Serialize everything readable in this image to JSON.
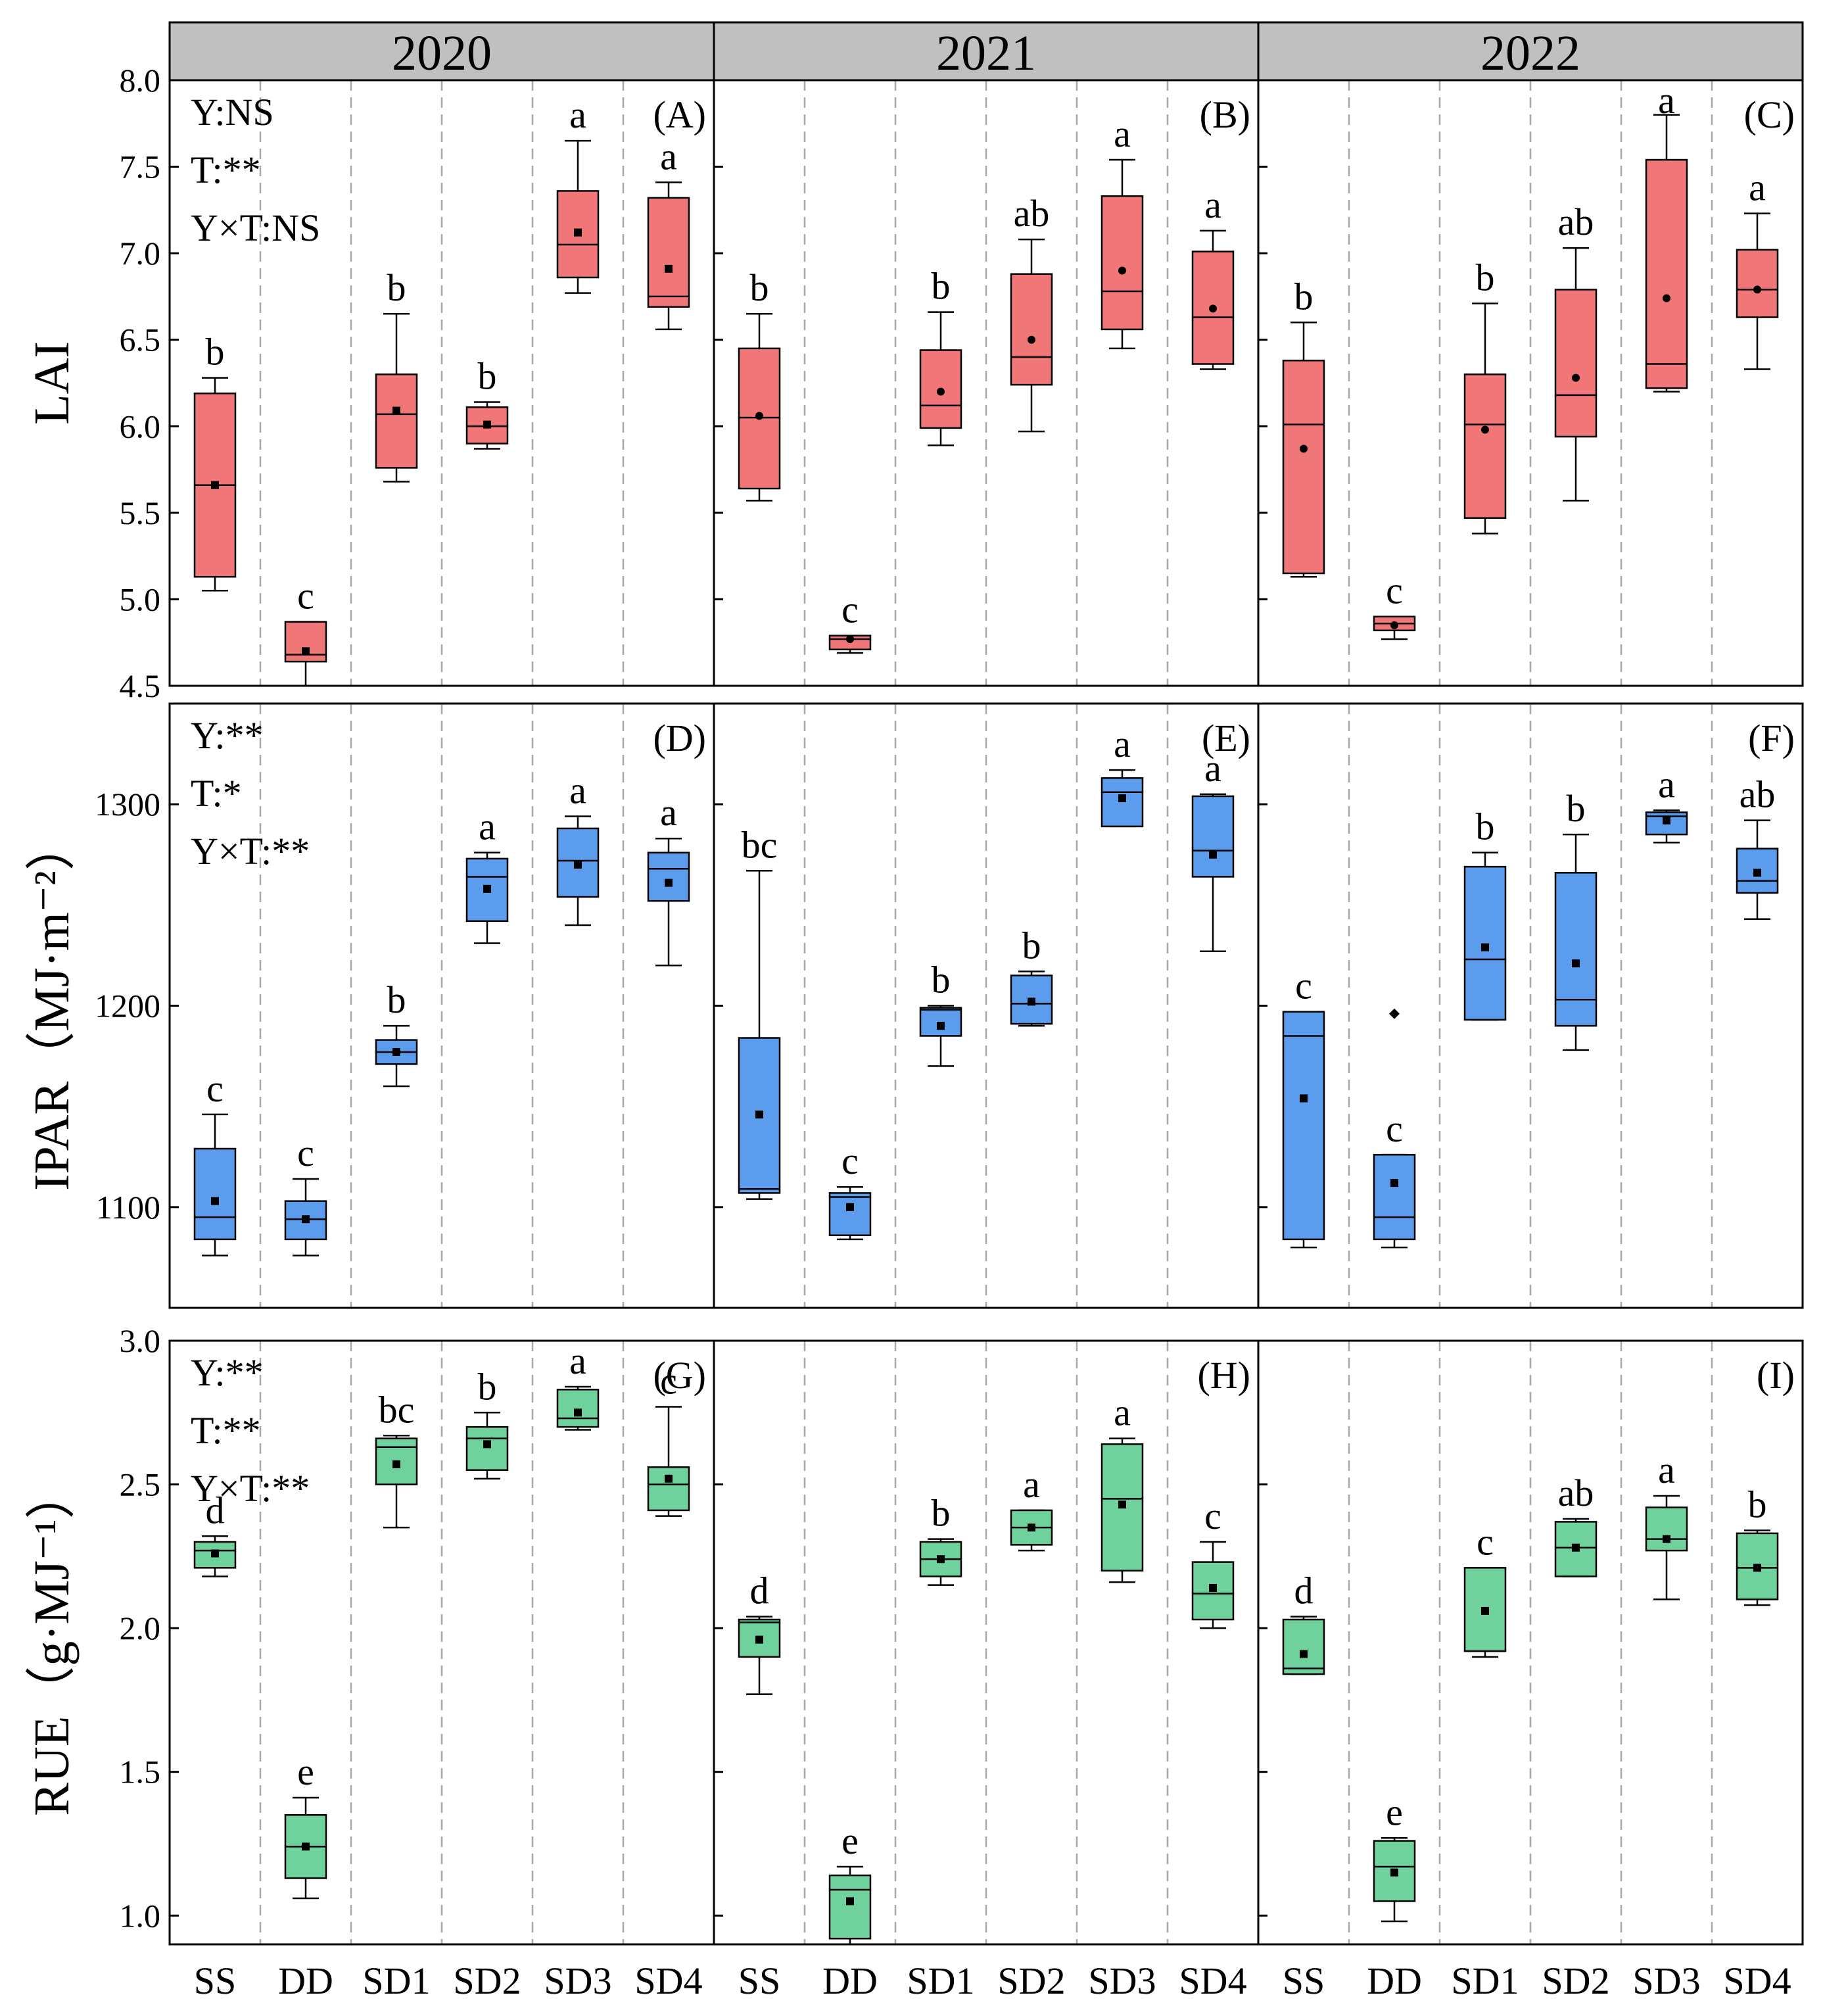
{
  "colors": {
    "strip_fill": "#c0c0c0",
    "lai_box": "#f07677",
    "ipar_box": "#5c9cec",
    "rue_box": "#6fd19c",
    "frame": "#000000",
    "divider": "#a8a8a8"
  },
  "categories": [
    "SS",
    "DD",
    "SD1",
    "SD2",
    "SD3",
    "SD4"
  ],
  "chart_data": [
    {
      "type": "boxplot",
      "id": "lai",
      "ylabel": "LAI",
      "ylim": [
        4.5,
        8.0
      ],
      "yticks": [
        "4.5",
        "5.0",
        "5.5",
        "6.0",
        "6.5",
        "7.0",
        "7.5",
        "8.0"
      ],
      "color_key": "lai_box",
      "mean_marker": [
        "square",
        "circle",
        "circle"
      ],
      "stats": [
        "Y:NS",
        "T:**",
        "Y×T:NS"
      ],
      "panels": [
        {
          "year": "2020",
          "tag": "(A)",
          "boxes": [
            {
              "cat": "SS",
              "min": 5.05,
              "q1": 5.13,
              "median": 5.66,
              "q3": 6.19,
              "max": 6.28,
              "mean": 5.66,
              "letter": "b"
            },
            {
              "cat": "DD",
              "min": 4.5,
              "q1": 4.64,
              "median": 4.68,
              "q3": 4.87,
              "max": 4.87,
              "mean": 4.7,
              "letter": "c"
            },
            {
              "cat": "SD1",
              "min": 5.68,
              "q1": 5.76,
              "median": 6.07,
              "q3": 6.3,
              "max": 6.65,
              "mean": 6.09,
              "letter": "b"
            },
            {
              "cat": "SD2",
              "min": 5.87,
              "q1": 5.9,
              "median": 6.0,
              "q3": 6.11,
              "max": 6.14,
              "mean": 6.01,
              "letter": "b"
            },
            {
              "cat": "SD3",
              "min": 6.77,
              "q1": 6.86,
              "median": 7.05,
              "q3": 7.36,
              "max": 7.65,
              "mean": 7.12,
              "letter": "a"
            },
            {
              "cat": "SD4",
              "min": 6.56,
              "q1": 6.69,
              "median": 6.75,
              "q3": 7.32,
              "max": 7.41,
              "mean": 6.91,
              "letter": "a"
            }
          ]
        },
        {
          "year": "2021",
          "tag": "(B)",
          "boxes": [
            {
              "cat": "SS",
              "min": 5.57,
              "q1": 5.64,
              "median": 6.05,
              "q3": 6.45,
              "max": 6.65,
              "mean": 6.06,
              "letter": "b"
            },
            {
              "cat": "DD",
              "min": 4.69,
              "q1": 4.71,
              "median": 4.77,
              "q3": 4.79,
              "max": 4.79,
              "mean": 4.77,
              "letter": "c"
            },
            {
              "cat": "SD1",
              "min": 5.89,
              "q1": 5.99,
              "median": 6.12,
              "q3": 6.44,
              "max": 6.66,
              "mean": 6.2,
              "letter": "b"
            },
            {
              "cat": "SD2",
              "min": 5.97,
              "q1": 6.24,
              "median": 6.4,
              "q3": 6.88,
              "max": 7.08,
              "mean": 6.5,
              "letter": "ab"
            },
            {
              "cat": "SD3",
              "min": 6.45,
              "q1": 6.56,
              "median": 6.78,
              "q3": 7.33,
              "max": 7.54,
              "mean": 6.9,
              "letter": "a"
            },
            {
              "cat": "SD4",
              "min": 6.33,
              "q1": 6.36,
              "median": 6.63,
              "q3": 7.01,
              "max": 7.13,
              "mean": 6.68,
              "letter": "a"
            }
          ]
        },
        {
          "year": "2022",
          "tag": "(C)",
          "boxes": [
            {
              "cat": "SS",
              "min": 5.13,
              "q1": 5.15,
              "median": 6.01,
              "q3": 6.38,
              "max": 6.6,
              "mean": 5.87,
              "letter": "b"
            },
            {
              "cat": "DD",
              "min": 4.77,
              "q1": 4.82,
              "median": 4.86,
              "q3": 4.9,
              "max": 4.9,
              "mean": 4.85,
              "letter": "c"
            },
            {
              "cat": "SD1",
              "min": 5.38,
              "q1": 5.47,
              "median": 6.01,
              "q3": 6.3,
              "max": 6.71,
              "mean": 5.98,
              "letter": "b"
            },
            {
              "cat": "SD2",
              "min": 5.57,
              "q1": 5.94,
              "median": 6.18,
              "q3": 6.79,
              "max": 7.03,
              "mean": 6.28,
              "letter": "ab"
            },
            {
              "cat": "SD3",
              "min": 6.2,
              "q1": 6.22,
              "median": 6.36,
              "q3": 7.54,
              "max": 7.8,
              "mean": 6.74,
              "letter": "a"
            },
            {
              "cat": "SD4",
              "min": 6.33,
              "q1": 6.63,
              "median": 6.79,
              "q3": 7.02,
              "max": 7.23,
              "mean": 6.79,
              "letter": "a"
            }
          ]
        }
      ]
    },
    {
      "type": "boxplot",
      "id": "ipar",
      "ylabel": "IPAR（MJ·m⁻²）",
      "ylim": [
        1050,
        1350
      ],
      "yticks": [
        "1100",
        "1200",
        "1300"
      ],
      "color_key": "ipar_box",
      "mean_marker": [
        "square",
        "square",
        "square"
      ],
      "stats": [
        "Y:**",
        "T:*",
        "Y×T:**"
      ],
      "panels": [
        {
          "year": "2020",
          "tag": "(D)",
          "boxes": [
            {
              "cat": "SS",
              "min": 1076,
              "q1": 1084,
              "median": 1095,
              "q3": 1129,
              "max": 1146,
              "mean": 1103,
              "letter": "c"
            },
            {
              "cat": "DD",
              "min": 1076,
              "q1": 1084,
              "median": 1094,
              "q3": 1103,
              "max": 1114,
              "mean": 1094,
              "letter": "c"
            },
            {
              "cat": "SD1",
              "min": 1160,
              "q1": 1171,
              "median": 1177,
              "q3": 1183,
              "max": 1190,
              "mean": 1177,
              "letter": "b"
            },
            {
              "cat": "SD2",
              "min": 1231,
              "q1": 1242,
              "median": 1264,
              "q3": 1273,
              "max": 1276,
              "mean": 1258,
              "letter": "a"
            },
            {
              "cat": "SD3",
              "min": 1240,
              "q1": 1254,
              "median": 1272,
              "q3": 1288,
              "max": 1294,
              "mean": 1270,
              "letter": "a"
            },
            {
              "cat": "SD4",
              "min": 1220,
              "q1": 1252,
              "median": 1268,
              "q3": 1276,
              "max": 1283,
              "mean": 1261,
              "letter": "a"
            }
          ]
        },
        {
          "year": "2021",
          "tag": "(E)",
          "boxes": [
            {
              "cat": "SS",
              "min": 1104,
              "q1": 1107,
              "median": 1109,
              "q3": 1184,
              "max": 1267,
              "mean": 1146,
              "letter": "bc"
            },
            {
              "cat": "DD",
              "min": 1084,
              "q1": 1086,
              "median": 1105,
              "q3": 1107,
              "max": 1110,
              "mean": 1100,
              "letter": "c"
            },
            {
              "cat": "SD1",
              "min": 1170,
              "q1": 1185,
              "median": 1198,
              "q3": 1199,
              "max": 1200,
              "mean": 1190,
              "letter": "b"
            },
            {
              "cat": "SD2",
              "min": 1190,
              "q1": 1191,
              "median": 1201,
              "q3": 1215,
              "max": 1217,
              "mean": 1202,
              "letter": "b"
            },
            {
              "cat": "SD3",
              "min": 1289,
              "q1": 1289,
              "median": 1306,
              "q3": 1313,
              "max": 1317,
              "mean": 1303,
              "letter": "a"
            },
            {
              "cat": "SD4",
              "min": 1227,
              "q1": 1264,
              "median": 1277,
              "q3": 1304,
              "max": 1305,
              "mean": 1275,
              "letter": "a"
            }
          ]
        },
        {
          "year": "2022",
          "tag": "(F)",
          "boxes": [
            {
              "cat": "SS",
              "min": 1080,
              "q1": 1084,
              "median": 1185,
              "q3": 1197,
              "max": 1197,
              "mean": 1154,
              "letter": "c"
            },
            {
              "cat": "DD",
              "min": 1080,
              "q1": 1084,
              "median": 1095,
              "q3": 1126,
              "max": 1126,
              "mean": 1112,
              "letter": "c",
              "outlier": 1196
            },
            {
              "cat": "SD1",
              "min": 1193,
              "q1": 1193,
              "median": 1223,
              "q3": 1269,
              "max": 1276,
              "mean": 1229,
              "letter": "b"
            },
            {
              "cat": "SD2",
              "min": 1178,
              "q1": 1190,
              "median": 1203,
              "q3": 1266,
              "max": 1285,
              "mean": 1221,
              "letter": "b"
            },
            {
              "cat": "SD3",
              "min": 1281,
              "q1": 1285,
              "median": 1294,
              "q3": 1296,
              "max": 1297,
              "mean": 1292,
              "letter": "a"
            },
            {
              "cat": "SD4",
              "min": 1243,
              "q1": 1256,
              "median": 1262,
              "q3": 1278,
              "max": 1292,
              "mean": 1266,
              "letter": "ab"
            }
          ]
        }
      ]
    },
    {
      "type": "boxplot",
      "id": "rue",
      "ylabel": "RUE（g·MJ⁻¹）",
      "ylim": [
        0.9,
        3.0
      ],
      "yticks": [
        "1.0",
        "1.5",
        "2.0",
        "2.5",
        "3.0"
      ],
      "color_key": "rue_box",
      "mean_marker": [
        "square",
        "square",
        "square"
      ],
      "stats": [
        "Y:**",
        "T:**",
        "Y×T:**"
      ],
      "panels": [
        {
          "year": "2020",
          "tag": "(G)",
          "boxes": [
            {
              "cat": "SS",
              "min": 2.18,
              "q1": 2.21,
              "median": 2.27,
              "q3": 2.3,
              "max": 2.32,
              "mean": 2.26,
              "letter": "d"
            },
            {
              "cat": "DD",
              "min": 1.06,
              "q1": 1.13,
              "median": 1.24,
              "q3": 1.35,
              "max": 1.41,
              "mean": 1.24,
              "letter": "e"
            },
            {
              "cat": "SD1",
              "min": 2.35,
              "q1": 2.5,
              "median": 2.63,
              "q3": 2.66,
              "max": 2.67,
              "mean": 2.57,
              "letter": "bc"
            },
            {
              "cat": "SD2",
              "min": 2.52,
              "q1": 2.55,
              "median": 2.66,
              "q3": 2.7,
              "max": 2.75,
              "mean": 2.64,
              "letter": "b"
            },
            {
              "cat": "SD3",
              "min": 2.69,
              "q1": 2.7,
              "median": 2.73,
              "q3": 2.83,
              "max": 2.84,
              "mean": 2.75,
              "letter": "a"
            },
            {
              "cat": "SD4",
              "min": 2.39,
              "q1": 2.41,
              "median": 2.5,
              "q3": 2.56,
              "max": 2.77,
              "mean": 2.52,
              "letter": "c"
            }
          ]
        },
        {
          "year": "2021",
          "tag": "(H)",
          "boxes": [
            {
              "cat": "SS",
              "min": 1.77,
              "q1": 1.9,
              "median": 2.02,
              "q3": 2.03,
              "max": 2.04,
              "mean": 1.96,
              "letter": "d"
            },
            {
              "cat": "DD",
              "min": 0.9,
              "q1": 0.92,
              "median": 1.09,
              "q3": 1.14,
              "max": 1.17,
              "mean": 1.05,
              "letter": "e"
            },
            {
              "cat": "SD1",
              "min": 2.15,
              "q1": 2.18,
              "median": 2.24,
              "q3": 2.3,
              "max": 2.31,
              "mean": 2.24,
              "letter": "b"
            },
            {
              "cat": "SD2",
              "min": 2.27,
              "q1": 2.29,
              "median": 2.35,
              "q3": 2.41,
              "max": 2.41,
              "mean": 2.35,
              "letter": "a"
            },
            {
              "cat": "SD3",
              "min": 2.16,
              "q1": 2.2,
              "median": 2.45,
              "q3": 2.64,
              "max": 2.66,
              "mean": 2.43,
              "letter": "a"
            },
            {
              "cat": "SD4",
              "min": 2.0,
              "q1": 2.03,
              "median": 2.12,
              "q3": 2.23,
              "max": 2.3,
              "mean": 2.14,
              "letter": "c"
            }
          ]
        },
        {
          "year": "2022",
          "tag": "(I)",
          "boxes": [
            {
              "cat": "SS",
              "min": 1.84,
              "q1": 1.84,
              "median": 1.86,
              "q3": 2.03,
              "max": 2.04,
              "mean": 1.91,
              "letter": "d"
            },
            {
              "cat": "DD",
              "min": 0.98,
              "q1": 1.05,
              "median": 1.17,
              "q3": 1.26,
              "max": 1.27,
              "mean": 1.15,
              "letter": "e"
            },
            {
              "cat": "SD1",
              "min": 1.9,
              "q1": 1.92,
              "median": 1.92,
              "q3": 2.21,
              "max": 2.21,
              "mean": 2.06,
              "letter": "c"
            },
            {
              "cat": "SD2",
              "min": 2.18,
              "q1": 2.18,
              "median": 2.28,
              "q3": 2.37,
              "max": 2.38,
              "mean": 2.28,
              "letter": "ab"
            },
            {
              "cat": "SD3",
              "min": 2.1,
              "q1": 2.27,
              "median": 2.31,
              "q3": 2.42,
              "max": 2.46,
              "mean": 2.31,
              "letter": "a"
            },
            {
              "cat": "SD4",
              "min": 2.08,
              "q1": 2.1,
              "median": 2.21,
              "q3": 2.33,
              "max": 2.34,
              "mean": 2.21,
              "letter": "b"
            }
          ]
        }
      ]
    }
  ]
}
